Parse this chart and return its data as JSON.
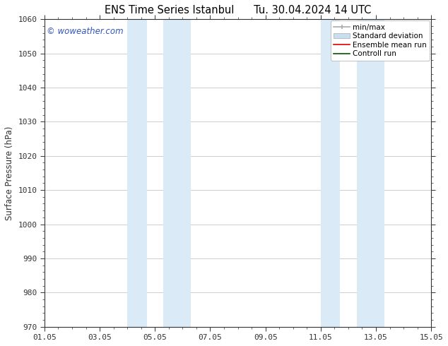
{
  "title_left": "ENS Time Series Istanbul",
  "title_right": "Tu. 30.04.2024 14 UTC",
  "ylabel": "Surface Pressure (hPa)",
  "ylim": [
    970,
    1060
  ],
  "yticks": [
    970,
    980,
    990,
    1000,
    1010,
    1020,
    1030,
    1040,
    1050,
    1060
  ],
  "xlim_start": 0,
  "xlim_end": 14,
  "xtick_labels": [
    "01.05",
    "03.05",
    "05.05",
    "07.05",
    "09.05",
    "11.05",
    "13.05",
    "15.05"
  ],
  "xtick_positions": [
    0,
    2,
    4,
    6,
    8,
    10,
    12,
    14
  ],
  "watermark": "© woweather.com",
  "watermark_color": "#3355bb",
  "bg_color": "#ffffff",
  "plot_bg_color": "#ffffff",
  "shaded_bands": [
    {
      "xmin": 3.0,
      "xmax": 3.7,
      "color": "#daeaf7"
    },
    {
      "xmin": 4.3,
      "xmax": 5.3,
      "color": "#daeaf7"
    },
    {
      "xmin": 10.0,
      "xmax": 10.7,
      "color": "#daeaf7"
    },
    {
      "xmin": 11.3,
      "xmax": 12.3,
      "color": "#daeaf7"
    }
  ],
  "legend_entries": [
    {
      "label": "min/max",
      "color": "#aaaaaa",
      "lw": 1.2
    },
    {
      "label": "Standard deviation",
      "color": "#c8dff0",
      "lw": 6
    },
    {
      "label": "Ensemble mean run",
      "color": "#dd0000",
      "lw": 1.2
    },
    {
      "label": "Controll run",
      "color": "#005500",
      "lw": 1.2
    }
  ],
  "grid_color": "#bbbbbb",
  "grid_lw": 0.5,
  "spine_color": "#333333",
  "tick_color": "#333333",
  "title_fontsize": 10.5,
  "axis_label_fontsize": 8.5,
  "tick_fontsize": 8,
  "legend_fontsize": 7.5
}
